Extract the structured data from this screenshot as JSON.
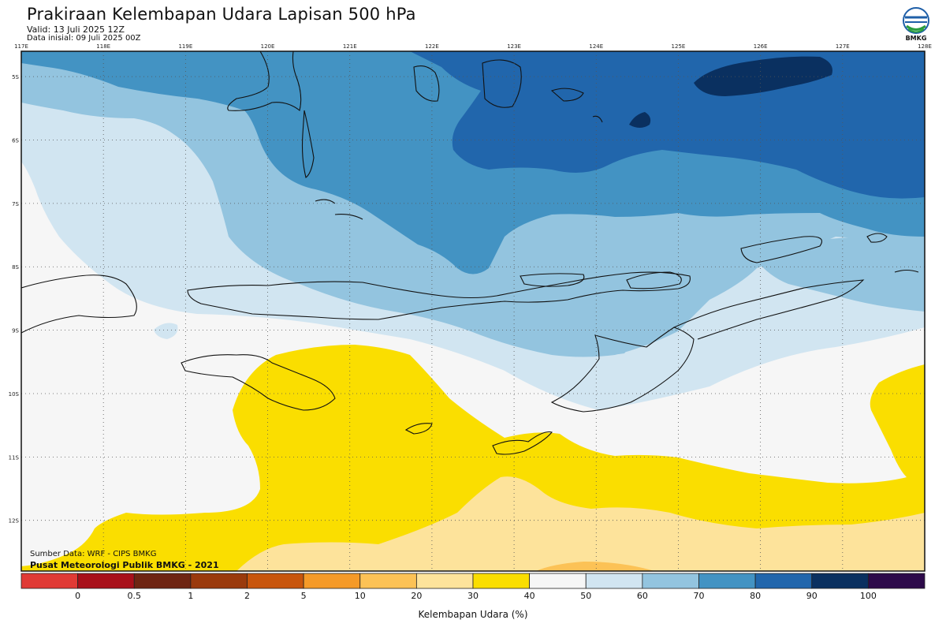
{
  "header": {
    "title": "Prakiraan Kelembapan Udara Lapisan 500 hPa",
    "valid": "Valid: 13 Juli 2025 12Z",
    "init": "Data inisial: 09 Juli 2025 00Z"
  },
  "logo": {
    "text": "BMKG",
    "icon": "bmkg-logo"
  },
  "map": {
    "lon_ticks": [
      "117E",
      "118E",
      "119E",
      "120E",
      "121E",
      "122E",
      "123E",
      "124E",
      "125E",
      "126E",
      "127E",
      "128E"
    ],
    "lat_ticks": [
      "5S",
      "6S",
      "7S",
      "8S",
      "9S",
      "10S",
      "11S",
      "12S"
    ],
    "lon_range": [
      117,
      128
    ],
    "lat_range": [
      -4.6,
      -12.8
    ],
    "gridlines": true
  },
  "credits": {
    "source": "Sumber Data: WRF - CIPS BMKG",
    "producer": "Pusat Meteorologi Publik BMKG - 2021"
  },
  "colorbar": {
    "title": "Kelembapan Udara (%)",
    "labels": [
      "0",
      "0.5",
      "1",
      "2",
      "5",
      "10",
      "20",
      "30",
      "40",
      "50",
      "60",
      "70",
      "80",
      "90",
      "100"
    ],
    "colors": [
      "#e03a35",
      "#a8101a",
      "#6e2512",
      "#9a3a0c",
      "#c8550c",
      "#f59a28",
      "#fcc256",
      "#fde39b",
      "#fade00",
      "#f6f6f6",
      "#d1e5f1",
      "#93c4df",
      "#4393c3",
      "#2166ac",
      "#0a3060",
      "#2d0a4a"
    ]
  },
  "field_colors": {
    "rh_40_50": "#f6f6f6",
    "rh_30_40": "#fade00",
    "rh_20_30": "#fde39b",
    "rh_10_20": "#fcc256",
    "rh_50_60": "#d1e5f1",
    "rh_60_70": "#93c4df",
    "rh_70_80": "#4393c3",
    "rh_80_90": "#2166ac",
    "rh_90_100": "#0a3060"
  }
}
